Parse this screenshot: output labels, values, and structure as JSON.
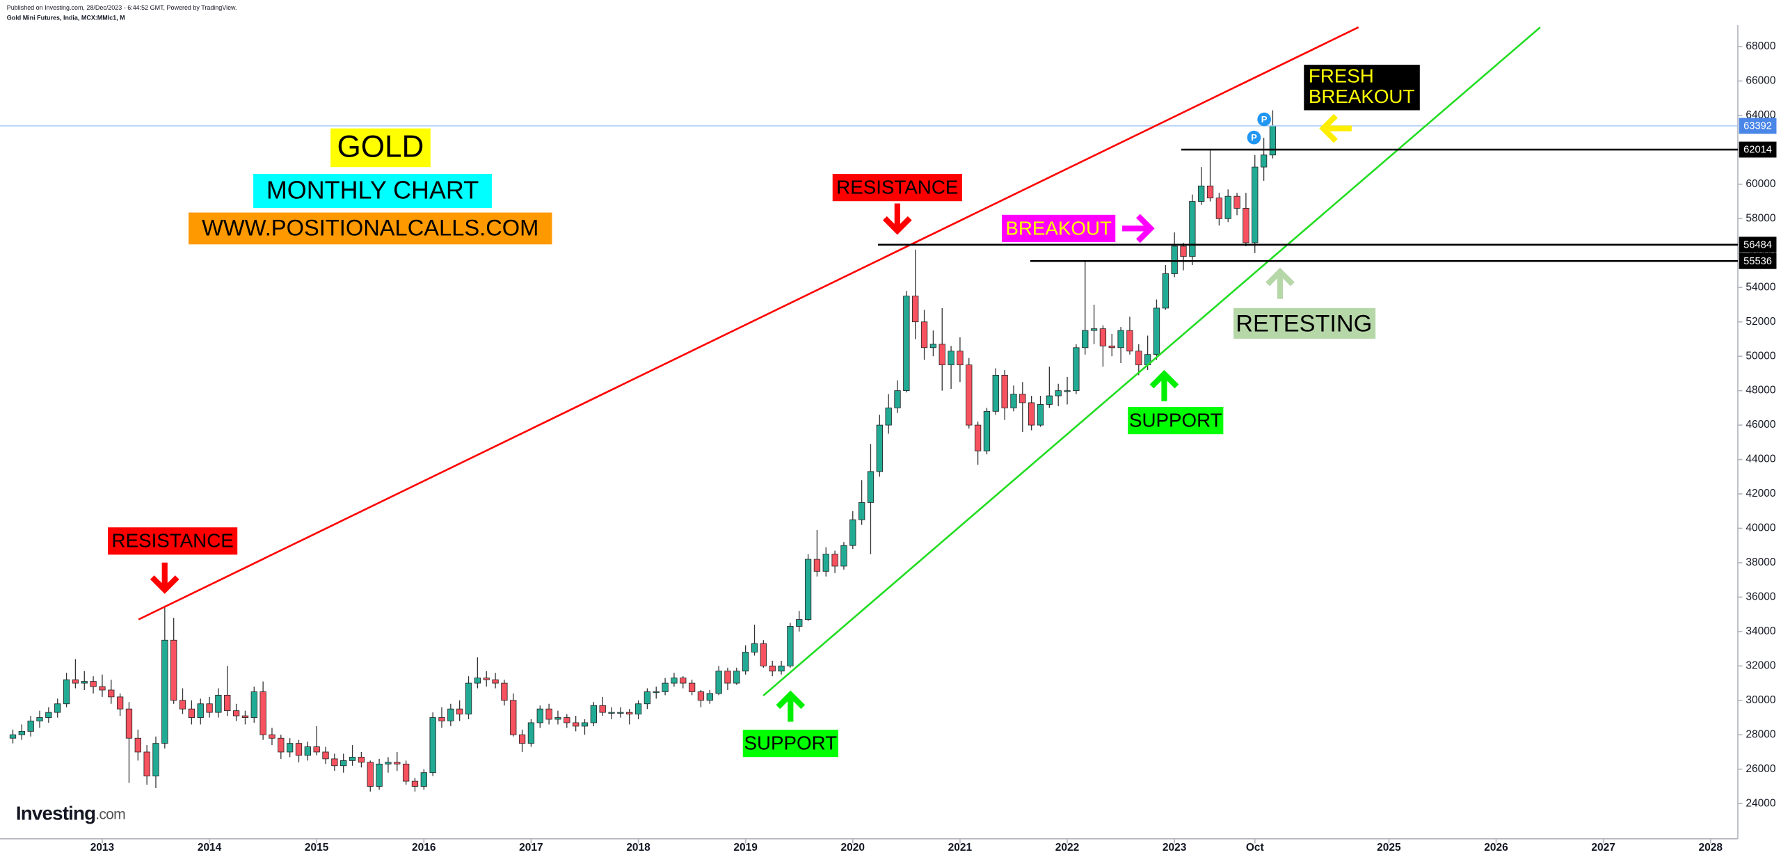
{
  "header": {
    "published": "Published on Investing.com, 28/Dec/2023 - 6:44:52 GMT, Powered by TradingView.",
    "symbol": "Gold Mini Futures, India, MCX:MMIc1, M",
    "logo": [
      "Investing",
      ".com"
    ]
  },
  "chart_data": {
    "type": "candlestick",
    "up_color": "#22ab94",
    "down_color": "#f7525f",
    "annotations": {
      "gold": "GOLD",
      "monthly": "MONTHLY CHART",
      "site": "WWW.POSITIONALCALLS.COM",
      "resistance_1": "RESISTANCE",
      "resistance_2": "RESISTANCE",
      "support_1": "SUPPORT",
      "support_2": "SUPPORT",
      "breakout": "BREAKOUT",
      "fresh_breakout": [
        "FRESH",
        "BREAKOUT"
      ],
      "retesting": "RETESTING",
      "markers": [
        "P",
        "P"
      ]
    },
    "last_price": 63392,
    "levels": [
      62014,
      56484,
      55536
    ],
    "ylim": [
      22600,
      69400
    ],
    "yticks": [
      24000,
      26000,
      28000,
      30000,
      32000,
      34000,
      36000,
      38000,
      40000,
      42000,
      44000,
      46000,
      48000,
      50000,
      52000,
      54000,
      56000,
      58000,
      60000,
      62000,
      64000,
      66000,
      68000
    ],
    "xticks": [
      {
        "value": "2013-01",
        "label": "2013"
      },
      {
        "value": "2014-01",
        "label": "2014"
      },
      {
        "value": "2015-01",
        "label": "2015"
      },
      {
        "value": "2016-01",
        "label": "2016"
      },
      {
        "value": "2017-01",
        "label": "2017"
      },
      {
        "value": "2018-01",
        "label": "2018"
      },
      {
        "value": "2019-01",
        "label": "2019"
      },
      {
        "value": "2020-01",
        "label": "2020"
      },
      {
        "value": "2021-01",
        "label": "2021"
      },
      {
        "value": "2022-01",
        "label": "2022"
      },
      {
        "value": "2023-01",
        "label": "2023"
      },
      {
        "value": "2023-10",
        "label": "Oct"
      },
      {
        "value": "2025-01",
        "label": "2025"
      },
      {
        "value": "2026-01",
        "label": "2026"
      },
      {
        "value": "2027-01",
        "label": "2027"
      },
      {
        "value": "2028-01",
        "label": "2028"
      }
    ],
    "x": [
      "2012-03",
      "2012-04",
      "2012-05",
      "2012-06",
      "2012-07",
      "2012-08",
      "2012-09",
      "2012-10",
      "2012-11",
      "2012-12",
      "2013-01",
      "2013-02",
      "2013-03",
      "2013-04",
      "2013-05",
      "2013-06",
      "2013-07",
      "2013-08",
      "2013-09",
      "2013-10",
      "2013-11",
      "2013-12",
      "2014-01",
      "2014-02",
      "2014-03",
      "2014-04",
      "2014-05",
      "2014-06",
      "2014-07",
      "2014-08",
      "2014-09",
      "2014-10",
      "2014-11",
      "2014-12",
      "2015-01",
      "2015-02",
      "2015-03",
      "2015-04",
      "2015-05",
      "2015-06",
      "2015-07",
      "2015-08",
      "2015-09",
      "2015-10",
      "2015-11",
      "2015-12",
      "2016-01",
      "2016-02",
      "2016-03",
      "2016-04",
      "2016-05",
      "2016-06",
      "2016-07",
      "2016-08",
      "2016-09",
      "2016-10",
      "2016-11",
      "2016-12",
      "2017-01",
      "2017-02",
      "2017-03",
      "2017-04",
      "2017-05",
      "2017-06",
      "2017-07",
      "2017-08",
      "2017-09",
      "2017-10",
      "2017-11",
      "2017-12",
      "2018-01",
      "2018-02",
      "2018-03",
      "2018-04",
      "2018-05",
      "2018-06",
      "2018-07",
      "2018-08",
      "2018-09",
      "2018-10",
      "2018-11",
      "2018-12",
      "2019-01",
      "2019-02",
      "2019-03",
      "2019-04",
      "2019-05",
      "2019-06",
      "2019-07",
      "2019-08",
      "2019-09",
      "2019-10",
      "2019-11",
      "2019-12",
      "2020-01",
      "2020-02",
      "2020-03",
      "2020-04",
      "2020-05",
      "2020-06",
      "2020-07",
      "2020-08",
      "2020-09",
      "2020-10",
      "2020-11",
      "2020-12",
      "2021-01",
      "2021-02",
      "2021-03",
      "2021-04",
      "2021-05",
      "2021-06",
      "2021-07",
      "2021-08",
      "2021-09",
      "2021-10",
      "2021-11",
      "2021-12",
      "2022-01",
      "2022-02",
      "2022-03",
      "2022-04",
      "2022-05",
      "2022-06",
      "2022-07",
      "2022-08",
      "2022-09",
      "2022-10",
      "2022-11",
      "2022-12",
      "2023-01",
      "2023-02",
      "2023-03",
      "2023-04",
      "2023-05",
      "2023-06",
      "2023-07",
      "2023-08",
      "2023-09",
      "2023-10",
      "2023-11",
      "2023-12"
    ],
    "ohlc": [
      [
        27800,
        28300,
        27500,
        28000
      ],
      [
        28000,
        28600,
        27700,
        28200
      ],
      [
        28200,
        29100,
        27900,
        28800
      ],
      [
        28800,
        29400,
        28400,
        29000
      ],
      [
        29000,
        29600,
        28700,
        29300
      ],
      [
        29300,
        30100,
        29000,
        29800
      ],
      [
        29800,
        31600,
        29600,
        31200
      ],
      [
        31200,
        32400,
        30700,
        31000
      ],
      [
        31000,
        31700,
        30600,
        31100
      ],
      [
        31100,
        31400,
        30400,
        30800
      ],
      [
        30800,
        31500,
        30200,
        30600
      ],
      [
        30600,
        31200,
        29800,
        30200
      ],
      [
        30200,
        30400,
        29100,
        29500
      ],
      [
        29500,
        29900,
        25200,
        27800
      ],
      [
        27800,
        28300,
        26500,
        27000
      ],
      [
        27000,
        27400,
        25100,
        25600
      ],
      [
        25600,
        27900,
        24900,
        27500
      ],
      [
        27500,
        35500,
        27200,
        33500
      ],
      [
        33500,
        34800,
        29800,
        30000
      ],
      [
        30000,
        30700,
        29200,
        29500
      ],
      [
        29500,
        30000,
        28600,
        29000
      ],
      [
        29000,
        30100,
        28600,
        29800
      ],
      [
        29800,
        30200,
        29000,
        29300
      ],
      [
        29300,
        30700,
        29000,
        30300
      ],
      [
        30300,
        32000,
        29100,
        29400
      ],
      [
        29400,
        29800,
        28800,
        29100
      ],
      [
        29100,
        29400,
        28600,
        29000
      ],
      [
        29000,
        30800,
        28700,
        30500
      ],
      [
        30500,
        31100,
        27700,
        28000
      ],
      [
        28000,
        28400,
        27400,
        27800
      ],
      [
        27800,
        28000,
        26600,
        27000
      ],
      [
        27000,
        27800,
        26700,
        27500
      ],
      [
        27500,
        27700,
        26400,
        26800
      ],
      [
        26800,
        27600,
        26500,
        27300
      ],
      [
        27300,
        28500,
        26800,
        27000
      ],
      [
        27000,
        27300,
        26300,
        26600
      ],
      [
        26600,
        26900,
        25900,
        26200
      ],
      [
        26200,
        26900,
        25800,
        26500
      ],
      [
        26500,
        27400,
        26200,
        26700
      ],
      [
        26700,
        27000,
        26100,
        26400
      ],
      [
        26400,
        26500,
        24700,
        25000
      ],
      [
        25000,
        26600,
        24800,
        26300
      ],
      [
        26300,
        26700,
        25800,
        26400
      ],
      [
        26400,
        27000,
        25900,
        26300
      ],
      [
        26300,
        26500,
        25100,
        25300
      ],
      [
        25300,
        25500,
        24700,
        25000
      ],
      [
        25000,
        26000,
        24800,
        25800
      ],
      [
        25800,
        29300,
        25600,
        29000
      ],
      [
        29000,
        29600,
        28400,
        28800
      ],
      [
        28800,
        29800,
        28500,
        29500
      ],
      [
        29500,
        30000,
        28800,
        29200
      ],
      [
        29200,
        31400,
        28900,
        31000
      ],
      [
        31000,
        32500,
        30700,
        31300
      ],
      [
        31300,
        31700,
        30800,
        31200
      ],
      [
        31200,
        31600,
        30700,
        31000
      ],
      [
        31000,
        31200,
        29700,
        30000
      ],
      [
        30000,
        30400,
        27900,
        28000
      ],
      [
        28000,
        28300,
        27000,
        27500
      ],
      [
        27500,
        28900,
        27300,
        28700
      ],
      [
        28700,
        29700,
        28400,
        29500
      ],
      [
        29500,
        29800,
        28600,
        28900
      ],
      [
        28900,
        29400,
        28600,
        29000
      ],
      [
        29000,
        29200,
        28400,
        28700
      ],
      [
        28700,
        29100,
        28200,
        28500
      ],
      [
        28500,
        28900,
        28000,
        28700
      ],
      [
        28700,
        29900,
        28500,
        29700
      ],
      [
        29700,
        30200,
        29100,
        29300
      ],
      [
        29300,
        29600,
        28900,
        29300
      ],
      [
        29300,
        29600,
        29000,
        29300
      ],
      [
        29300,
        29500,
        28600,
        29200
      ],
      [
        29200,
        30000,
        28900,
        29800
      ],
      [
        29800,
        30700,
        29500,
        30500
      ],
      [
        30500,
        30800,
        30100,
        30500
      ],
      [
        30500,
        31300,
        30300,
        31000
      ],
      [
        31000,
        31600,
        30800,
        31300
      ],
      [
        31300,
        31400,
        30700,
        31000
      ],
      [
        31000,
        31200,
        30300,
        30500
      ],
      [
        30500,
        30600,
        29600,
        30000
      ],
      [
        30000,
        30600,
        29800,
        30400
      ],
      [
        30400,
        32000,
        30300,
        31700
      ],
      [
        31700,
        31900,
        30600,
        31000
      ],
      [
        31000,
        31900,
        30900,
        31700
      ],
      [
        31700,
        33200,
        31500,
        32800
      ],
      [
        32800,
        34400,
        32600,
        33300
      ],
      [
        33300,
        33500,
        31900,
        32000
      ],
      [
        32000,
        32300,
        31400,
        31700
      ],
      [
        31700,
        32300,
        31500,
        32000
      ],
      [
        32000,
        34500,
        31900,
        34300
      ],
      [
        34300,
        35200,
        34000,
        34700
      ],
      [
        34700,
        38500,
        34600,
        38200
      ],
      [
        38200,
        39900,
        37200,
        37500
      ],
      [
        37500,
        38900,
        37200,
        38500
      ],
      [
        38500,
        38700,
        37400,
        37800
      ],
      [
        37800,
        39200,
        37600,
        39000
      ],
      [
        39000,
        41000,
        38800,
        40500
      ],
      [
        40500,
        42800,
        40200,
        41500
      ],
      [
        41500,
        44900,
        38500,
        43300
      ],
      [
        43300,
        46600,
        43000,
        46000
      ],
      [
        46000,
        47800,
        45500,
        47000
      ],
      [
        47000,
        48600,
        46700,
        48000
      ],
      [
        48000,
        53800,
        47900,
        53500
      ],
      [
        53500,
        56200,
        51000,
        52000
      ],
      [
        52000,
        52700,
        49800,
        50500
      ],
      [
        50500,
        51500,
        50000,
        50700
      ],
      [
        50700,
        52800,
        48000,
        49500
      ],
      [
        49500,
        50600,
        48100,
        50300
      ],
      [
        50300,
        51100,
        48500,
        49500
      ],
      [
        49500,
        49900,
        45800,
        46000
      ],
      [
        46000,
        46200,
        43700,
        44500
      ],
      [
        44500,
        47000,
        44300,
        46800
      ],
      [
        46800,
        49300,
        46600,
        48900
      ],
      [
        48900,
        49200,
        46300,
        47000
      ],
      [
        47000,
        48300,
        46800,
        47800
      ],
      [
        47800,
        48500,
        45600,
        47300
      ],
      [
        47300,
        47700,
        45700,
        46000
      ],
      [
        46000,
        47700,
        45900,
        47200
      ],
      [
        47200,
        49400,
        47000,
        47700
      ],
      [
        47700,
        48400,
        47100,
        48000
      ],
      [
        48000,
        48800,
        47200,
        48000
      ],
      [
        48000,
        50700,
        47800,
        50500
      ],
      [
        50500,
        55500,
        50100,
        51500
      ],
      [
        51500,
        53000,
        50700,
        51600
      ],
      [
        51600,
        51800,
        49400,
        50600
      ],
      [
        50600,
        51300,
        50000,
        50500
      ],
      [
        50500,
        51700,
        49600,
        51500
      ],
      [
        51500,
        52300,
        50100,
        50300
      ],
      [
        50300,
        50700,
        48900,
        49500
      ],
      [
        49500,
        51200,
        49200,
        50100
      ],
      [
        50100,
        53300,
        49800,
        52800
      ],
      [
        52800,
        55300,
        52700,
        54800
      ],
      [
        54800,
        57200,
        54600,
        56400
      ],
      [
        56400,
        56600,
        55000,
        55800
      ],
      [
        55800,
        59400,
        55300,
        59000
      ],
      [
        59000,
        61000,
        58800,
        59900
      ],
      [
        59900,
        62014,
        59000,
        59200
      ],
      [
        59200,
        59500,
        57600,
        58000
      ],
      [
        58000,
        59700,
        57800,
        59300
      ],
      [
        59300,
        59500,
        58200,
        58600
      ],
      [
        58600,
        59500,
        56400,
        56600
      ],
      [
        56600,
        61700,
        56000,
        61000
      ],
      [
        61000,
        62700,
        60200,
        61700
      ],
      [
        61700,
        64300,
        61500,
        63392
      ]
    ]
  }
}
